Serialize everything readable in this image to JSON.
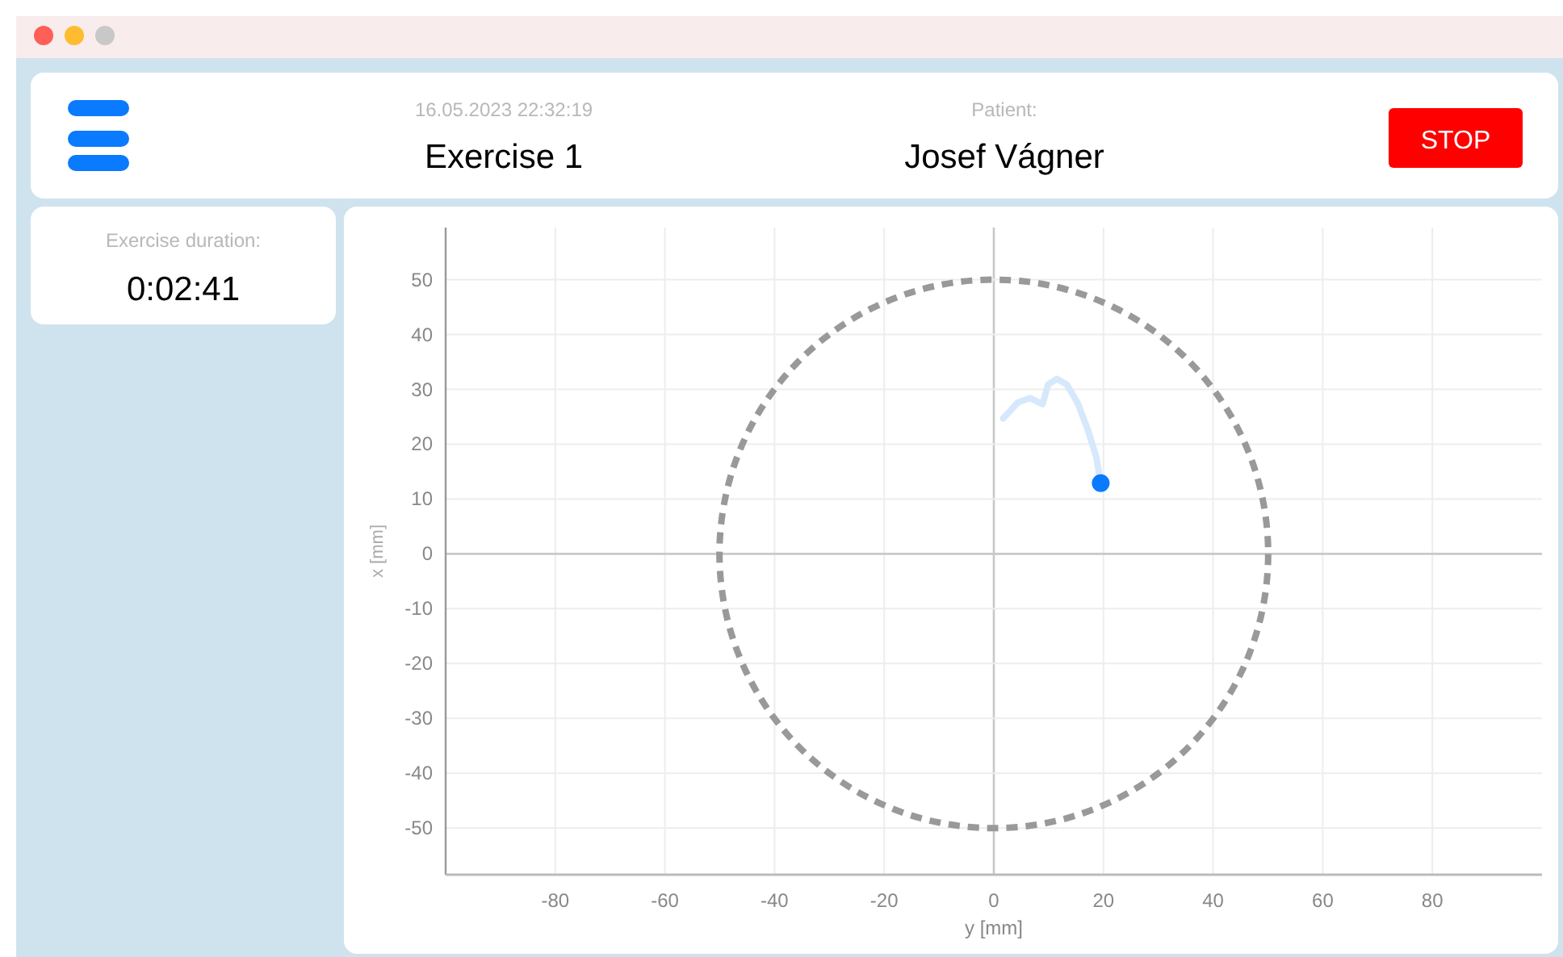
{
  "chart_data": {
    "type": "line",
    "title": "Exercise 1",
    "subtitle": "16.05.2023 22:32:19",
    "xlabel": "y [mm]",
    "ylabel": "x [mm]",
    "annotations": [
      "Patient:",
      "Josef Vágner",
      "STOP",
      "Exercise duration:",
      "0:02:41"
    ],
    "xlim": [
      -100,
      100
    ],
    "ylim": [
      -58.5,
      59.5
    ],
    "xticks": [
      -80,
      -60,
      -40,
      -20,
      0,
      20,
      40,
      60,
      80
    ],
    "yticks": [
      -50,
      -40,
      -30,
      -20,
      -10,
      0,
      10,
      20,
      30,
      40,
      50
    ],
    "grid": true,
    "series": [
      {
        "color": "#d6e8fb",
        "line_style": "solid",
        "marker": "none",
        "x": [
          1.7,
          4.4,
          6.6,
          8.9,
          9.9,
          11.5,
          13.3,
          15.3,
          17.2,
          18.7,
          19.5
        ],
        "values": [
          24.7,
          27.6,
          28.4,
          27.3,
          30.9,
          31.9,
          30.9,
          27.5,
          22.5,
          17.6,
          12.9
        ]
      },
      {
        "type": "scatter",
        "color": "#0a7aff",
        "marker": "circle",
        "x": [
          19.5
        ],
        "values": [
          12.9
        ]
      }
    ]
  }
}
